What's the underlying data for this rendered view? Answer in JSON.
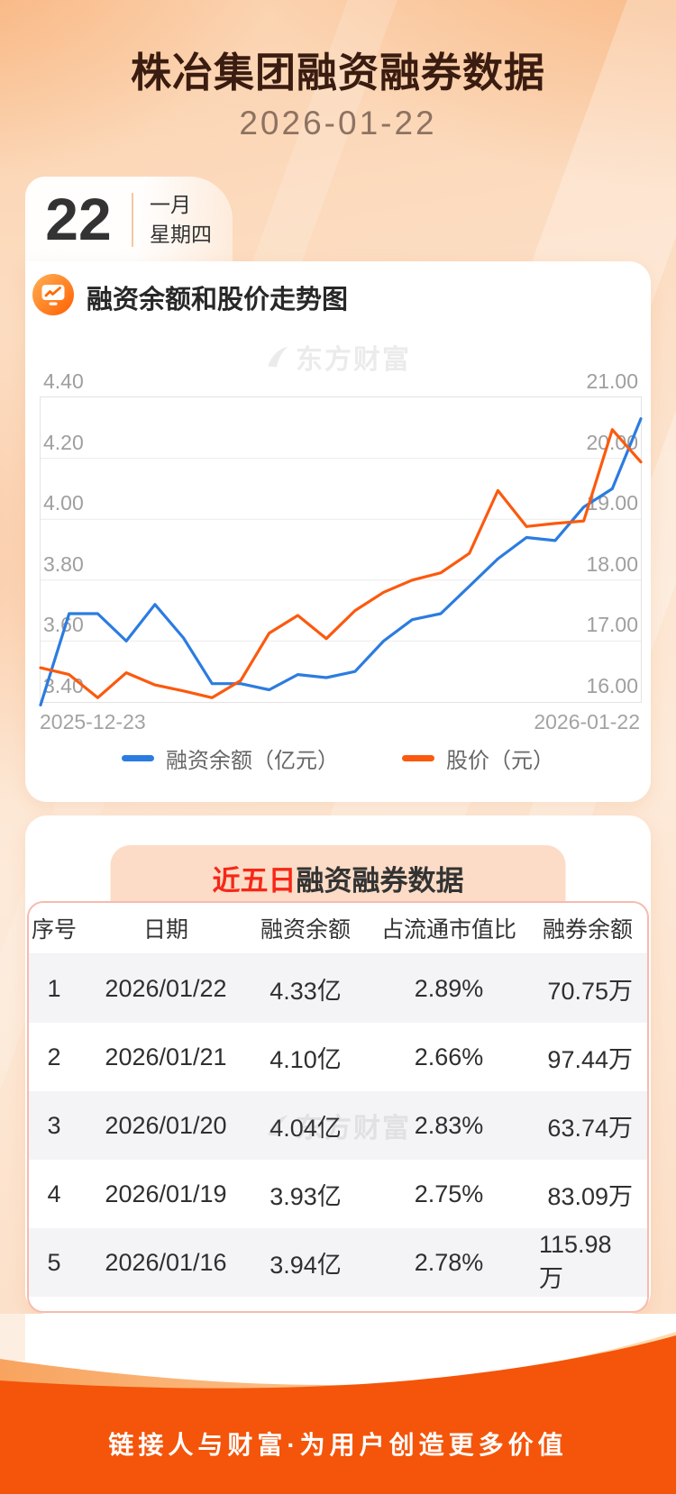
{
  "header": {
    "title": "株冶集团融资融券数据",
    "date": "2026-01-22"
  },
  "calendar": {
    "day": "22",
    "month": "一月",
    "weekday": "星期四"
  },
  "chart_section": {
    "icon": "chart-monitor-icon",
    "title": "融资余额和股价走势图",
    "watermark": "东方财富"
  },
  "chart_data": {
    "type": "line",
    "title": "融资余额和股价走势图",
    "x_start_label": "2025-12-23",
    "x_end_label": "2026-01-22",
    "grid": true,
    "legend_position": "bottom",
    "left_axis": {
      "min": 3.4,
      "max": 4.4,
      "ticks": [
        "4.40",
        "4.20",
        "4.00",
        "3.80",
        "3.60",
        "3.40"
      ]
    },
    "right_axis": {
      "min": 16.0,
      "max": 21.0,
      "ticks": [
        "21.00",
        "20.00",
        "19.00",
        "18.00",
        "17.00",
        "16.00"
      ]
    },
    "series": [
      {
        "name": "融资余额（亿元）",
        "axis": "left",
        "color": "#2b7ce0",
        "values": [
          3.39,
          3.69,
          3.69,
          3.6,
          3.72,
          3.61,
          3.46,
          3.46,
          3.44,
          3.49,
          3.48,
          3.5,
          3.6,
          3.67,
          3.69,
          3.78,
          3.87,
          3.94,
          3.93,
          4.04,
          4.1,
          4.33
        ]
      },
      {
        "name": "股价（元）",
        "axis": "right",
        "color": "#fb5a0e",
        "values": [
          16.56,
          16.45,
          16.07,
          16.48,
          16.28,
          16.18,
          16.07,
          16.35,
          17.13,
          17.42,
          17.04,
          17.5,
          17.8,
          18.0,
          18.12,
          18.44,
          19.47,
          18.88,
          18.93,
          18.97,
          20.47,
          19.94
        ]
      }
    ]
  },
  "table_section": {
    "title_highlight": "近五日",
    "title_rest": "融资融券数据",
    "watermark": "东方财富",
    "columns": [
      "序号",
      "日期",
      "融资余额",
      "占流通市值比",
      "融券余额"
    ],
    "rows": [
      [
        "1",
        "2026/01/22",
        "4.33亿",
        "2.89%",
        "70.75万"
      ],
      [
        "2",
        "2026/01/21",
        "4.10亿",
        "2.66%",
        "97.44万"
      ],
      [
        "3",
        "2026/01/20",
        "4.04亿",
        "2.83%",
        "63.74万"
      ],
      [
        "4",
        "2026/01/19",
        "3.93亿",
        "2.75%",
        "83.09万"
      ],
      [
        "5",
        "2026/01/16",
        "3.94亿",
        "2.78%",
        "115.98万"
      ]
    ]
  },
  "footer": {
    "slogan": "链接人与财富·为用户创造更多价值"
  },
  "colors": {
    "accent_orange": "#f4550a",
    "line_blue": "#2b7ce0",
    "line_orange": "#fb5a0e",
    "highlight_red": "#f72717",
    "banner_bg": "#fcdcc6"
  }
}
